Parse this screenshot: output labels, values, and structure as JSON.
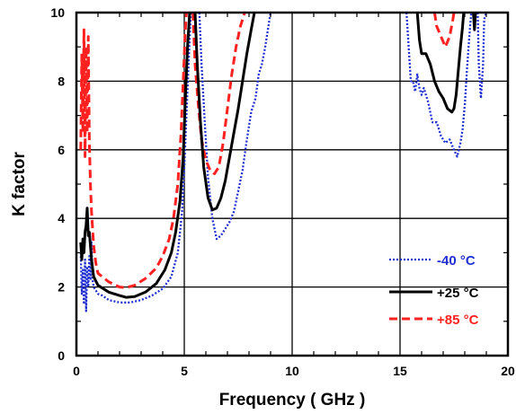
{
  "chart_data": {
    "type": "line",
    "title": "",
    "xlabel": "Frequency ( GHz )",
    "ylabel": "K factor",
    "xlim": [
      0,
      20
    ],
    "ylim": [
      0,
      10
    ],
    "xticks": [
      "0",
      "5",
      "10",
      "15",
      "20"
    ],
    "yticks": [
      "0",
      "2",
      "4",
      "6",
      "8",
      "10"
    ],
    "grid": true,
    "legend_position": "bottom-right",
    "series": [
      {
        "name": "-40 °C",
        "color": "#1f2fd0",
        "style": "dotted",
        "segments": [
          [
            [
              0.2,
              3.0
            ],
            [
              0.25,
              1.8
            ],
            [
              0.3,
              2.5
            ],
            [
              0.35,
              1.5
            ],
            [
              0.4,
              2.8
            ],
            [
              0.45,
              1.3
            ],
            [
              0.5,
              2.6
            ],
            [
              0.55,
              2.0
            ],
            [
              0.6,
              2.9
            ],
            [
              0.65,
              2.2
            ],
            [
              0.7,
              3.3
            ],
            [
              0.75,
              2.2
            ],
            [
              0.8,
              2.0
            ],
            [
              0.9,
              1.9
            ],
            [
              1.0,
              1.8
            ],
            [
              1.2,
              1.75
            ],
            [
              1.5,
              1.62
            ],
            [
              2.0,
              1.55
            ],
            [
              2.5,
              1.55
            ],
            [
              3.0,
              1.62
            ],
            [
              3.5,
              1.75
            ],
            [
              4.0,
              1.95
            ],
            [
              4.4,
              2.3
            ],
            [
              4.7,
              3.0
            ],
            [
              4.9,
              4.2
            ],
            [
              5.0,
              5.5
            ],
            [
              5.1,
              7.0
            ],
            [
              5.2,
              8.5
            ],
            [
              5.3,
              10.0
            ]
          ],
          [
            [
              5.7,
              10.0
            ],
            [
              5.8,
              8.5
            ],
            [
              5.95,
              6.8
            ],
            [
              6.1,
              5.2
            ],
            [
              6.3,
              4.0
            ],
            [
              6.5,
              3.4
            ],
            [
              6.7,
              3.5
            ],
            [
              6.9,
              3.7
            ],
            [
              7.1,
              3.9
            ],
            [
              7.3,
              4.2
            ],
            [
              7.5,
              4.8
            ],
            [
              7.7,
              5.4
            ],
            [
              7.9,
              6.3
            ],
            [
              8.1,
              7.1
            ],
            [
              8.3,
              7.5
            ],
            [
              8.45,
              8.2
            ],
            [
              8.6,
              8.5
            ],
            [
              8.75,
              9.0
            ],
            [
              8.9,
              9.6
            ],
            [
              9.0,
              10.0
            ]
          ],
          [
            [
              15.3,
              10.0
            ],
            [
              15.4,
              9.0
            ],
            [
              15.5,
              8.0
            ],
            [
              15.6,
              8.0
            ],
            [
              15.7,
              7.7
            ],
            [
              15.8,
              8.2
            ],
            [
              15.9,
              7.8
            ],
            [
              16.0,
              7.6
            ],
            [
              16.1,
              7.8
            ],
            [
              16.3,
              7.4
            ],
            [
              16.5,
              6.8
            ],
            [
              16.7,
              6.8
            ],
            [
              16.9,
              6.4
            ],
            [
              17.1,
              6.2
            ],
            [
              17.3,
              6.3
            ],
            [
              17.5,
              6.0
            ],
            [
              17.65,
              5.8
            ],
            [
              17.8,
              6.2
            ],
            [
              17.9,
              6.6
            ],
            [
              18.0,
              7.3
            ],
            [
              18.1,
              8.3
            ],
            [
              18.2,
              9.2
            ],
            [
              18.3,
              10.0
            ]
          ],
          [
            [
              18.6,
              10.0
            ],
            [
              18.65,
              8.5
            ],
            [
              18.7,
              8.0
            ],
            [
              18.75,
              7.5
            ],
            [
              18.85,
              8.5
            ],
            [
              18.9,
              9.8
            ],
            [
              19.0,
              10.0
            ]
          ]
        ]
      },
      {
        "name": "+25 °C",
        "color": "#000000",
        "style": "solid",
        "segments": [
          [
            [
              0.2,
              3.3
            ],
            [
              0.25,
              2.8
            ],
            [
              0.3,
              3.4
            ],
            [
              0.35,
              3.0
            ],
            [
              0.4,
              3.6
            ],
            [
              0.45,
              3.8
            ],
            [
              0.5,
              4.3
            ],
            [
              0.55,
              3.5
            ],
            [
              0.6,
              3.6
            ],
            [
              0.7,
              2.8
            ],
            [
              0.8,
              2.3
            ],
            [
              1.0,
              2.05
            ],
            [
              1.5,
              1.85
            ],
            [
              2.0,
              1.75
            ],
            [
              2.3,
              1.7
            ],
            [
              2.7,
              1.72
            ],
            [
              3.2,
              1.85
            ],
            [
              3.7,
              2.1
            ],
            [
              4.1,
              2.5
            ],
            [
              4.4,
              3.0
            ],
            [
              4.6,
              3.6
            ],
            [
              4.8,
              4.5
            ],
            [
              4.95,
              5.8
            ],
            [
              5.05,
              7.5
            ],
            [
              5.15,
              9.0
            ],
            [
              5.25,
              10.0
            ]
          ],
          [
            [
              5.5,
              10.0
            ],
            [
              5.6,
              8.5
            ],
            [
              5.75,
              6.8
            ],
            [
              5.9,
              5.5
            ],
            [
              6.1,
              4.6
            ],
            [
              6.3,
              4.25
            ],
            [
              6.5,
              4.3
            ],
            [
              6.7,
              4.6
            ],
            [
              6.9,
              5.1
            ],
            [
              7.1,
              5.8
            ],
            [
              7.3,
              6.5
            ],
            [
              7.5,
              7.2
            ],
            [
              7.7,
              8.0
            ],
            [
              7.9,
              8.8
            ],
            [
              8.1,
              9.5
            ],
            [
              8.25,
              10.0
            ]
          ],
          [
            [
              15.8,
              10.0
            ],
            [
              15.9,
              9.2
            ],
            [
              16.0,
              8.8
            ],
            [
              16.2,
              8.8
            ],
            [
              16.4,
              8.5
            ],
            [
              16.6,
              8.0
            ],
            [
              16.8,
              7.7
            ],
            [
              17.0,
              7.5
            ],
            [
              17.2,
              7.2
            ],
            [
              17.4,
              7.1
            ],
            [
              17.5,
              7.2
            ],
            [
              17.6,
              7.6
            ],
            [
              17.7,
              8.3
            ],
            [
              17.8,
              9.0
            ],
            [
              17.9,
              9.6
            ],
            [
              17.95,
              10.0
            ]
          ],
          [
            [
              18.4,
              10.0
            ],
            [
              18.45,
              9.5
            ],
            [
              18.5,
              10.0
            ]
          ]
        ]
      },
      {
        "name": "+85 °C",
        "color": "#ff2020",
        "style": "dashed",
        "segments": [
          [
            [
              0.2,
              6.0
            ],
            [
              0.25,
              8.8
            ],
            [
              0.3,
              6.5
            ],
            [
              0.35,
              9.5
            ],
            [
              0.4,
              5.8
            ],
            [
              0.45,
              9.0
            ],
            [
              0.5,
              6.5
            ],
            [
              0.55,
              9.3
            ],
            [
              0.6,
              6.2
            ],
            [
              0.65,
              5.0
            ],
            [
              0.7,
              4.2
            ],
            [
              0.8,
              3.2
            ],
            [
              0.9,
              2.7
            ],
            [
              1.0,
              2.4
            ],
            [
              1.5,
              2.15
            ],
            [
              2.0,
              2.0
            ],
            [
              2.3,
              1.98
            ],
            [
              2.7,
              2.05
            ],
            [
              3.2,
              2.25
            ],
            [
              3.7,
              2.55
            ],
            [
              4.0,
              2.9
            ],
            [
              4.3,
              3.4
            ],
            [
              4.5,
              4.0
            ],
            [
              4.7,
              5.0
            ],
            [
              4.85,
              6.5
            ],
            [
              4.95,
              8.0
            ],
            [
              5.05,
              9.5
            ],
            [
              5.1,
              10.0
            ]
          ],
          [
            [
              5.4,
              10.0
            ],
            [
              5.5,
              8.5
            ],
            [
              5.65,
              7.3
            ],
            [
              5.8,
              6.3
            ],
            [
              6.0,
              5.7
            ],
            [
              6.2,
              5.4
            ],
            [
              6.4,
              5.3
            ],
            [
              6.6,
              5.5
            ],
            [
              6.8,
              6.2
            ],
            [
              7.0,
              7.2
            ],
            [
              7.2,
              8.2
            ],
            [
              7.4,
              9.0
            ],
            [
              7.6,
              9.6
            ],
            [
              7.8,
              10.0
            ]
          ],
          [
            [
              16.6,
              10.0
            ],
            [
              16.7,
              9.6
            ],
            [
              16.9,
              9.3
            ],
            [
              17.1,
              9.0
            ],
            [
              17.3,
              9.3
            ],
            [
              17.45,
              9.8
            ],
            [
              17.5,
              10.0
            ]
          ]
        ]
      }
    ]
  }
}
